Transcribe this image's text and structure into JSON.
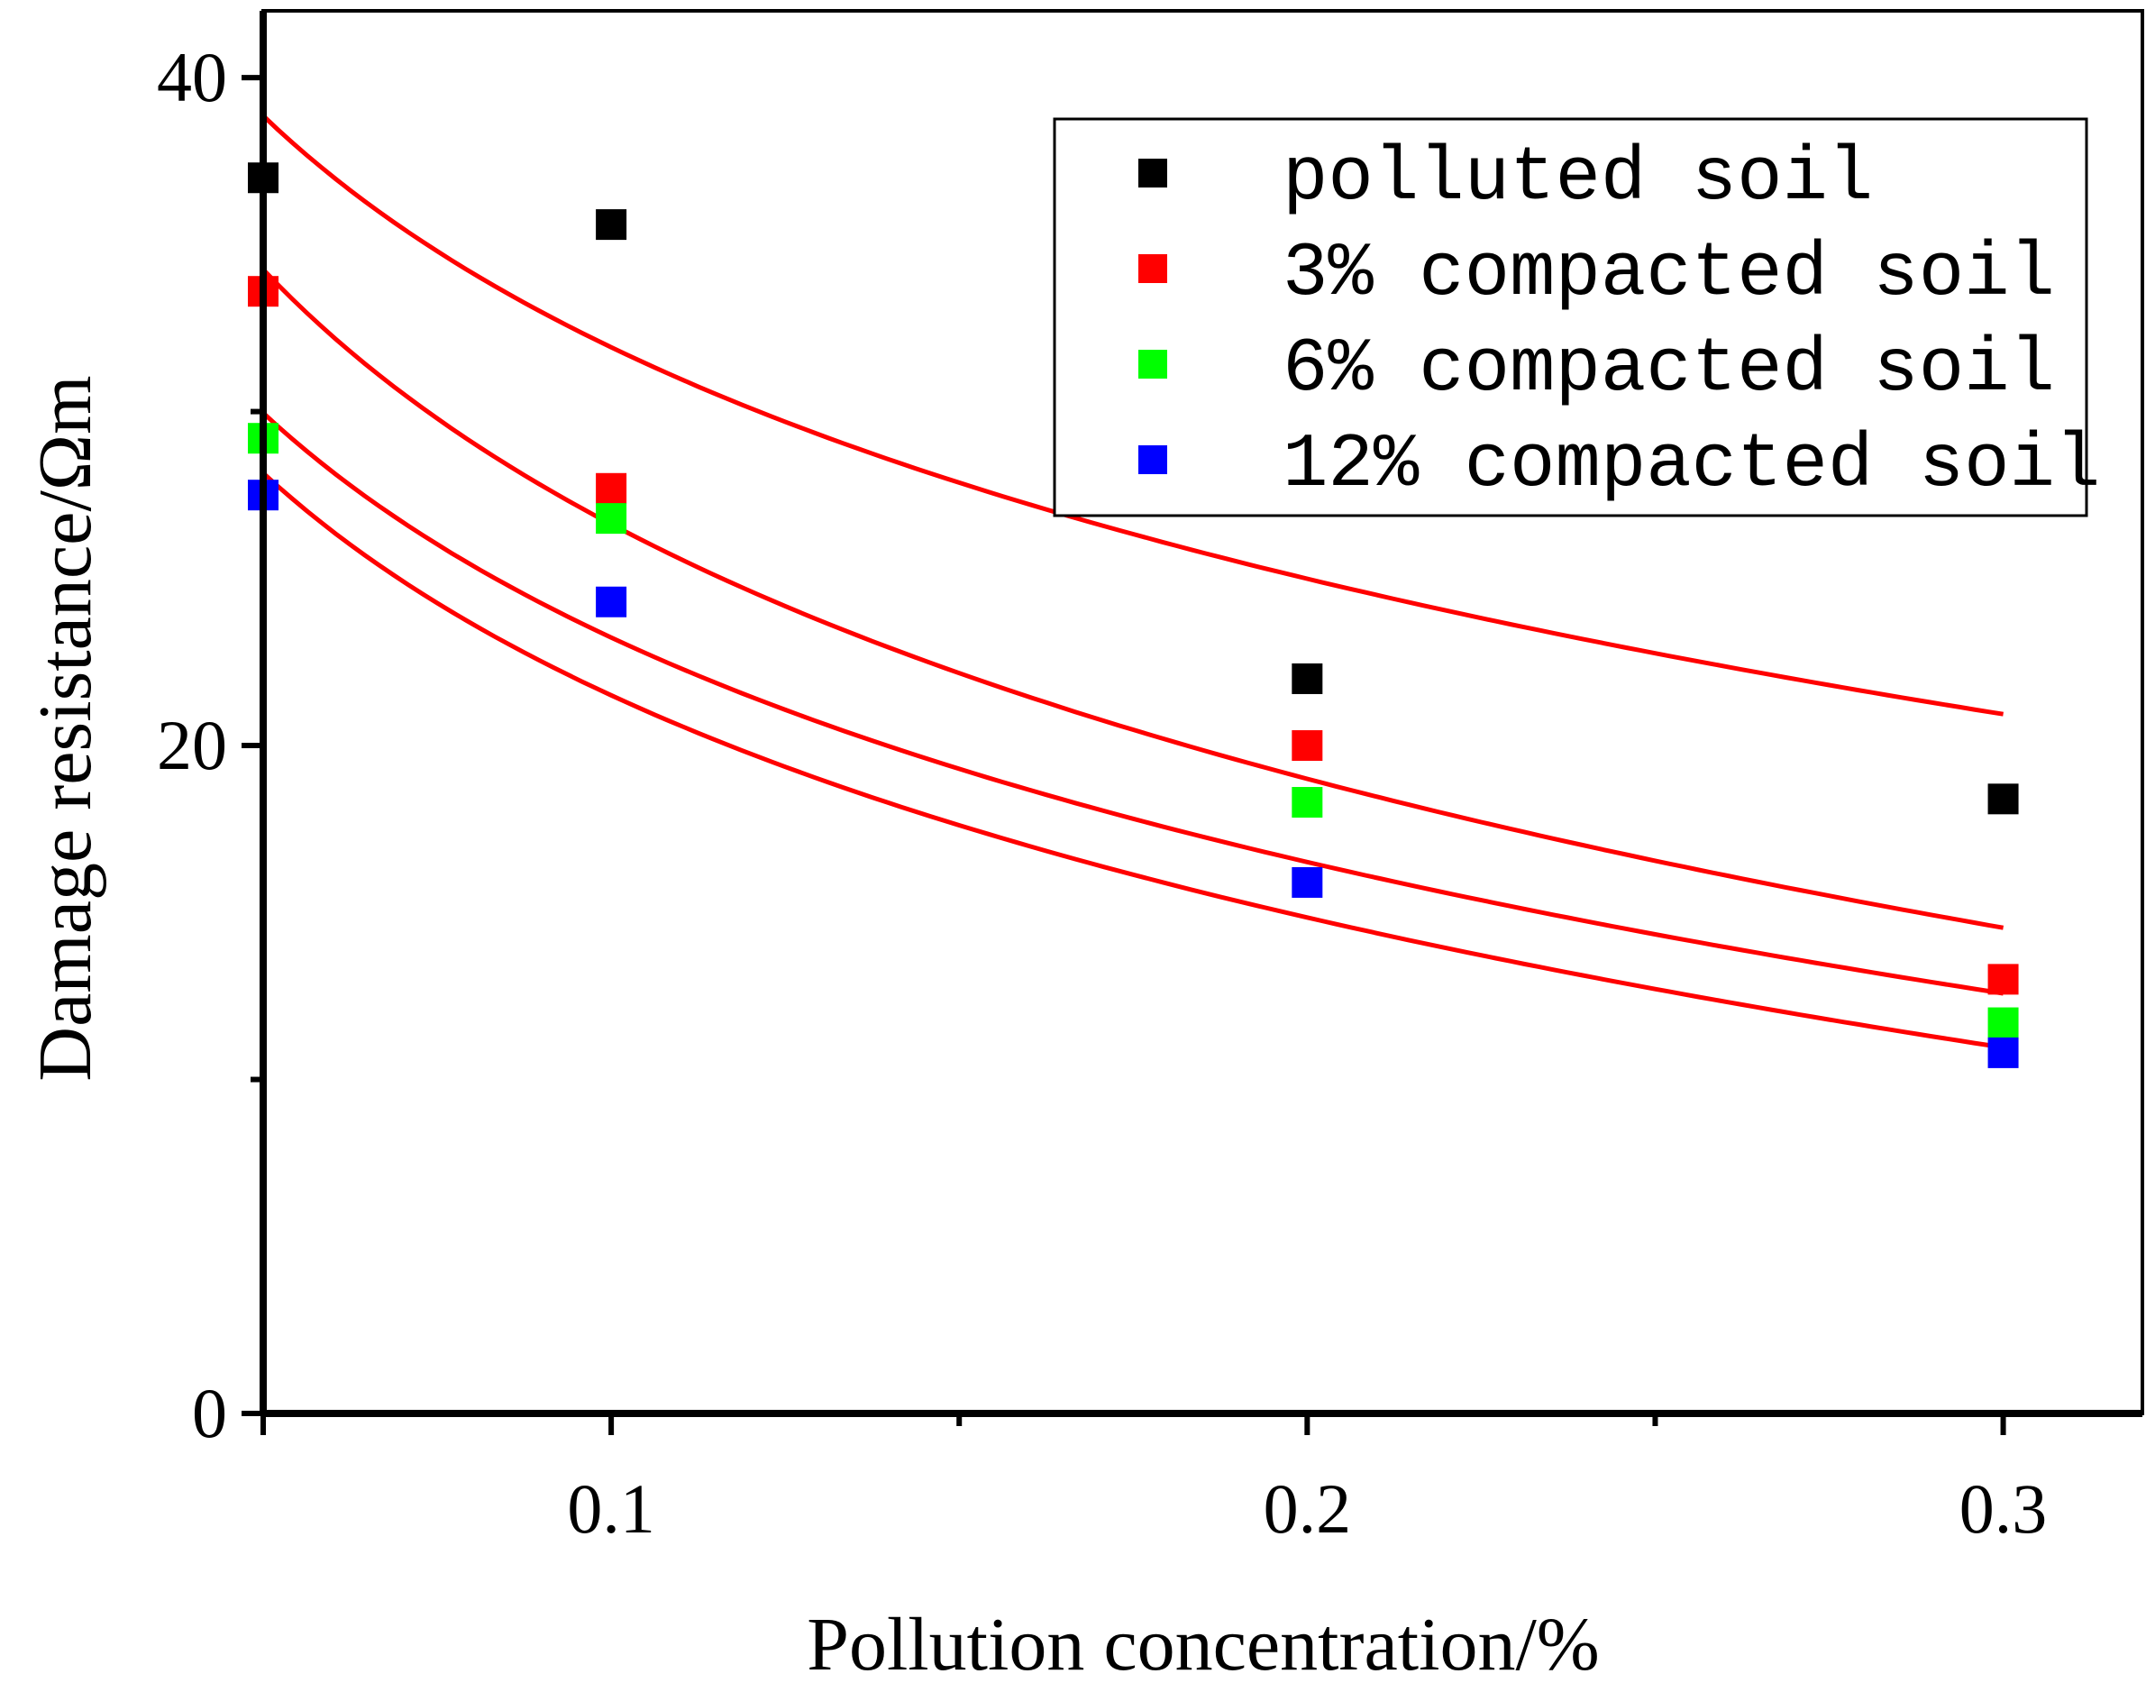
{
  "chart_data": {
    "type": "scatter",
    "title": "",
    "xlabel": "Pollution concentration/%",
    "ylabel": "Damage resistance/Ωm",
    "xlim": [
      0.05,
      0.32
    ],
    "ylim": [
      0,
      42
    ],
    "x_ticks": [
      {
        "value": 0.1,
        "label": "0.1"
      },
      {
        "value": 0.2,
        "label": "0.2"
      },
      {
        "value": 0.3,
        "label": "0.3"
      }
    ],
    "x_minor_ticks": [
      0.15,
      0.25
    ],
    "y_ticks": [
      {
        "value": 0,
        "label": "0"
      },
      {
        "value": 20,
        "label": "20"
      },
      {
        "value": 40,
        "label": "40"
      }
    ],
    "y_minor_ticks": [
      10,
      30
    ],
    "legend_position": "top-right",
    "series": [
      {
        "name": "polluted soil",
        "color": "#000000",
        "x": [
          0.05,
          0.1,
          0.2,
          0.3
        ],
        "y": [
          37.0,
          35.6,
          22.0,
          18.4
        ],
        "fit": {
          "type": "log",
          "a": 8.9,
          "b": -10.0,
          "x_end": 0.3
        }
      },
      {
        "name": "3% compacted soil",
        "color": "#ff0000",
        "x": [
          0.05,
          0.1,
          0.2,
          0.3
        ],
        "y": [
          33.6,
          27.7,
          20.0,
          13.0
        ],
        "fit": {
          "type": "log",
          "a": 1.3,
          "b": -11.0,
          "x_end": 0.3
        }
      },
      {
        "name": "6% compacted soil",
        "color": "#00ff00",
        "x": [
          0.05,
          0.1,
          0.2,
          0.3
        ],
        "y": [
          29.2,
          26.8,
          18.3,
          11.7
        ],
        "fit": {
          "type": "log",
          "a": 0.9,
          "b": -9.7,
          "x_end": 0.3
        }
      },
      {
        "name": "12% compacted soil",
        "color": "#0000ff",
        "x": [
          0.05,
          0.1,
          0.2,
          0.3
        ],
        "y": [
          27.5,
          24.3,
          15.9,
          10.8
        ],
        "fit": {
          "type": "log",
          "a": -0.6,
          "b": -9.6,
          "x_end": 0.3
        }
      }
    ]
  }
}
